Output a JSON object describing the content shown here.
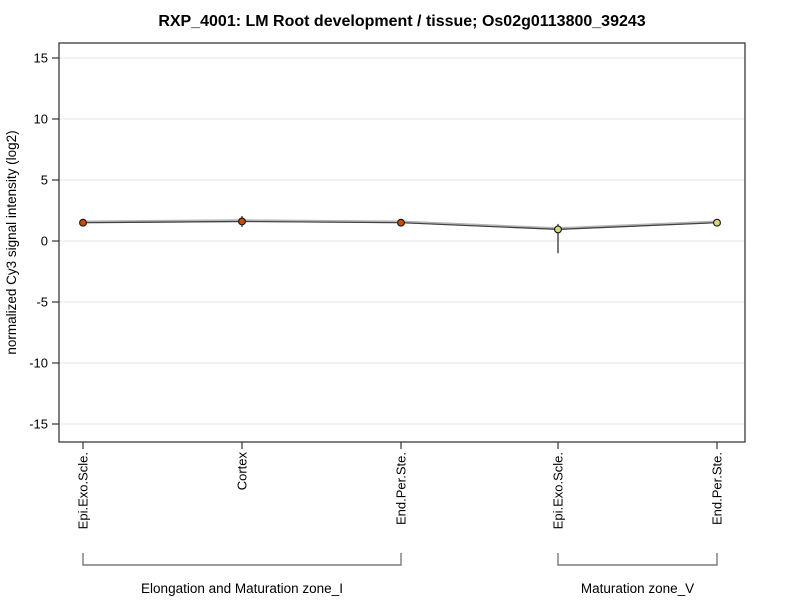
{
  "page": {
    "background": "#ffffff"
  },
  "chart_data": {
    "type": "line",
    "title": "RXP_4001: LM Root development / tissue; Os02g0113800_39243",
    "ylabel": "normalized Cy3 signal intensity (log2)",
    "xlabel": "",
    "categories": [
      "Epi.Exo.Scle.",
      "Cortex",
      "End.Per.Ste.",
      "Epi.Exo.Scle.",
      "End.Per.Ste."
    ],
    "values": [
      1.5,
      1.6,
      1.5,
      0.95,
      1.5
    ],
    "error_bars": [
      {
        "lo": 1.2,
        "hi": 1.8
      },
      {
        "lo": 1.15,
        "hi": 2.05
      },
      {
        "lo": 1.25,
        "hi": 1.75
      },
      {
        "lo": -1.0,
        "hi": 1.4
      },
      {
        "lo": 1.45,
        "hi": 1.55
      }
    ],
    "point_colors": [
      "#cc4a08",
      "#cc4a08",
      "#cc4a08",
      "#d8d87a",
      "#d8d87a"
    ],
    "line_colors": {
      "underlay": "#b4b4b4",
      "main": "#3f3f3f"
    },
    "yticks": [
      15,
      10,
      5,
      0,
      -5,
      -10,
      -15
    ],
    "ylim": [
      -16.4,
      16.3
    ],
    "grid": true,
    "legend": "none",
    "groups": [
      {
        "label": "Elongation and Maturation zone_I",
        "from": 0,
        "to": 2
      },
      {
        "label": "Maturation zone_V",
        "from": 3,
        "to": 4
      }
    ]
  },
  "colors": {
    "grid": "#e4e4e4",
    "box": "#3a3a3a",
    "tick": "#333333",
    "bracket": "#7a7a7a",
    "whisker": "#222222",
    "point_outline": "#141414"
  }
}
